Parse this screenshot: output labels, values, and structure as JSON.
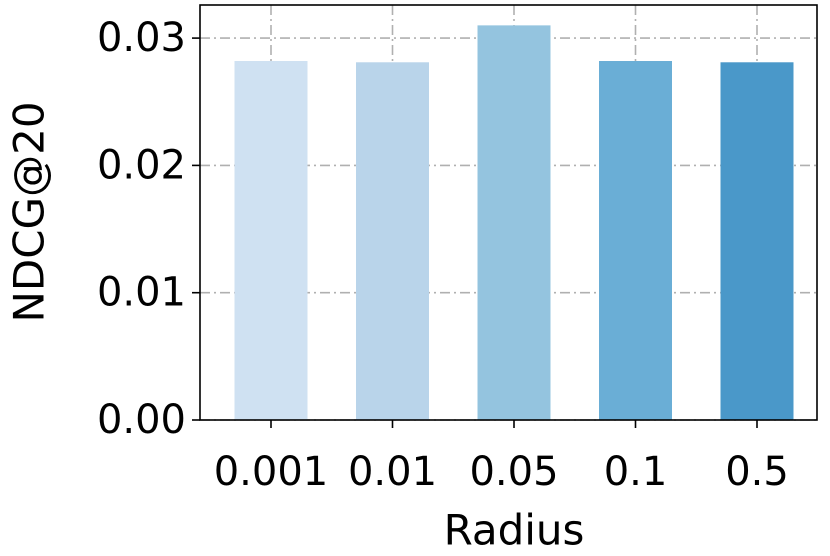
{
  "chart_data": {
    "type": "bar",
    "x_label": "Radius",
    "y_label": "NDCG@20",
    "categories": [
      "0.001",
      "0.01",
      "0.05",
      "0.1",
      "0.5"
    ],
    "values": [
      0.0282,
      0.0281,
      0.031,
      0.0282,
      0.0281
    ],
    "colors": [
      "#cfe1f2",
      "#b9d4ea",
      "#94c4df",
      "#6aaed6",
      "#4a98c9"
    ],
    "ylim": [
      0,
      0.0326
    ],
    "yticks": [
      {
        "value": 0,
        "label": "0.00"
      },
      0.01,
      0.02,
      0.03
    ],
    "grid": true
  }
}
